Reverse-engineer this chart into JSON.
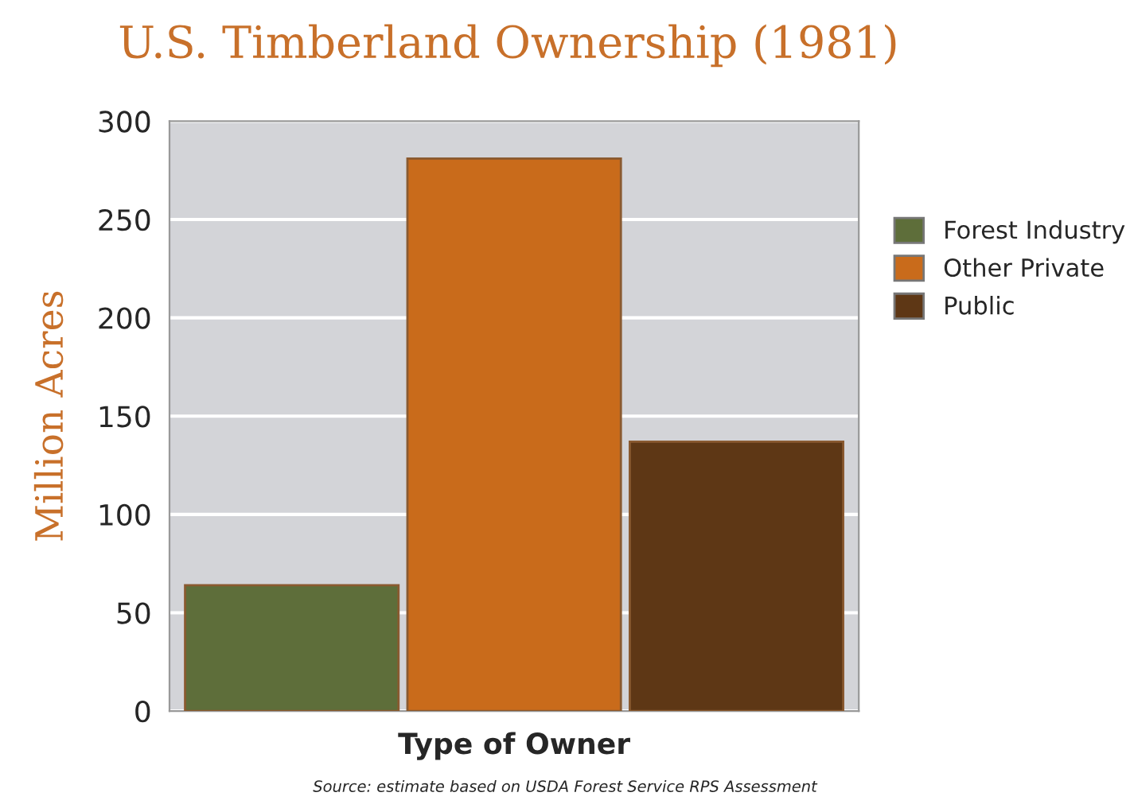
{
  "chart_data": {
    "type": "bar",
    "title": "U.S. Timberland Ownership (1981)",
    "xlabel": "Type of Owner",
    "ylabel": "Million Acres",
    "categories": [
      null,
      null,
      null
    ],
    "stacked": true,
    "series": [
      {
        "name": "Forest Industry",
        "color": "#5e6e3a",
        "values": [
          64,
          null,
          null
        ]
      },
      {
        "name": "Other Private",
        "color": "#c96b1b",
        "values": [
          null,
          281,
          null
        ]
      },
      {
        "name": "Public",
        "color": "#5e3715",
        "values": [
          null,
          null,
          137
        ]
      }
    ],
    "ylim": [
      0,
      300
    ],
    "yticks": [
      0,
      50,
      100,
      150,
      200,
      250,
      300
    ],
    "grid": "y",
    "legend": "right",
    "annotations": [
      "Source: estimate based on USDA Forest Service RPS Assessment"
    ]
  }
}
